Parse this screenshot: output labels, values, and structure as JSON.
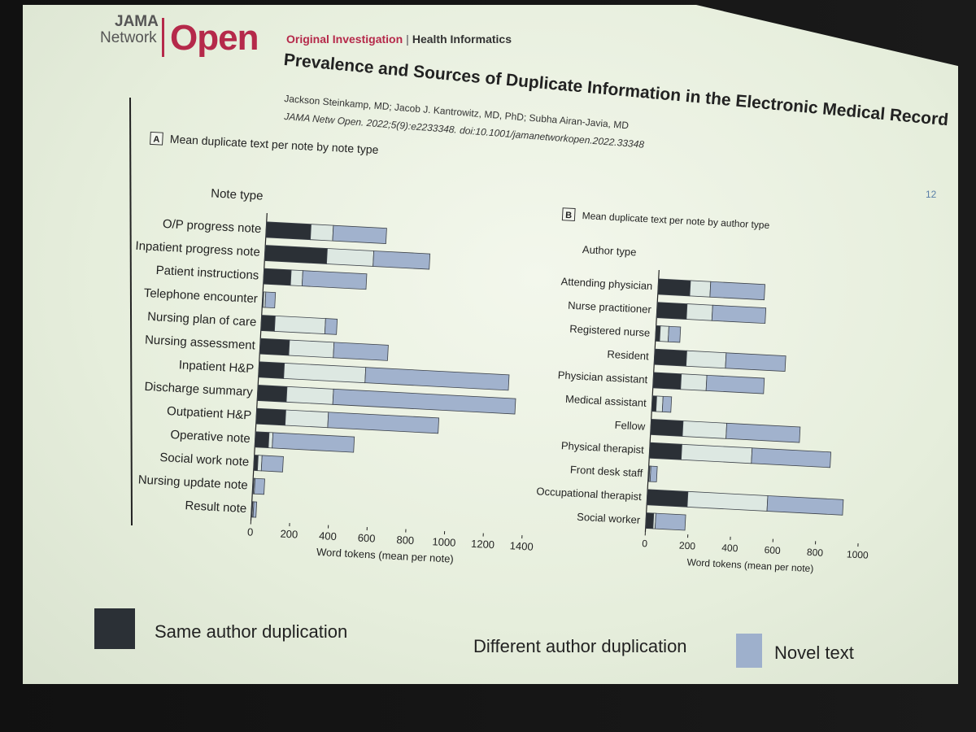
{
  "slide": {
    "logo": {
      "jama": "JAMA",
      "network": "Network",
      "open": "Open"
    },
    "section_a": "Original Investigation",
    "section_b": "Health Informatics",
    "title": "Prevalence and Sources of Duplicate Information in the Electronic Medical Record",
    "authors": "Jackson Steinkamp, MD; Jacob J. Kantrowitz, MD, PhD; Subha Airan-Javia, MD",
    "citation": "JAMA Netw Open. 2022;5(9):e2233348. doi:10.1001/jamanetworkopen.2022.33348",
    "page_number": "12"
  },
  "legend": [
    {
      "label": "Same author duplication",
      "color": "#2b3036"
    },
    {
      "label": "Different author duplication",
      "color": "#d9e6e0"
    },
    {
      "label": "Novel text",
      "color": "#9eb0cc"
    }
  ],
  "colors": {
    "same": "#2b3036",
    "different": "#dde8e2",
    "novel": "#a1b2cd",
    "stroke": "#3b4048"
  },
  "chart_data": [
    {
      "type": "bar",
      "orientation": "horizontal",
      "stacked": true,
      "panel": "A",
      "title": "Mean duplicate text per note by note type",
      "category_label": "Note type",
      "xlabel": "Word tokens (mean per note)",
      "xlim": [
        0,
        1400
      ],
      "xticks": [
        0,
        200,
        400,
        600,
        800,
        1000,
        1200,
        1400
      ],
      "categories": [
        "O/P progress note",
        "Inpatient progress note",
        "Patient instructions",
        "Telephone encounter",
        "Nursing plan of care",
        "Nursing assessment",
        "Inpatient H&P",
        "Discharge summary",
        "Outpatient H&P",
        "Operative note",
        "Social work note",
        "Nursing update note",
        "Result note"
      ],
      "series": [
        {
          "name": "Same author duplication",
          "values": [
            230,
            320,
            140,
            5,
            70,
            150,
            130,
            150,
            150,
            70,
            20,
            5,
            5
          ]
        },
        {
          "name": "Different author duplication",
          "values": [
            115,
            240,
            60,
            10,
            260,
            230,
            420,
            240,
            220,
            20,
            20,
            5,
            5
          ]
        },
        {
          "name": "Novel text",
          "values": [
            275,
            290,
            330,
            50,
            60,
            280,
            740,
            940,
            570,
            420,
            110,
            50,
            15
          ]
        }
      ]
    },
    {
      "type": "bar",
      "orientation": "horizontal",
      "stacked": true,
      "panel": "B",
      "title": "Mean duplicate text per note by author type",
      "category_label": "Author type",
      "xlabel": "Word tokens (mean per note)",
      "xlim": [
        0,
        1000
      ],
      "xticks": [
        0,
        200,
        400,
        600,
        800,
        1000
      ],
      "categories": [
        "Attending physician",
        "Nurse practitioner",
        "Registered nurse",
        "Resident",
        "Physician assistant",
        "Medical assistant",
        "Fellow",
        "Physical therapist",
        "Front desk staff",
        "Occupational therapist",
        "Social worker"
      ],
      "series": [
        {
          "name": "Same author duplication",
          "values": [
            150,
            140,
            20,
            150,
            130,
            20,
            150,
            150,
            5,
            190,
            35
          ]
        },
        {
          "name": "Different author duplication",
          "values": [
            95,
            120,
            40,
            185,
            120,
            30,
            205,
            330,
            5,
            375,
            10
          ]
        },
        {
          "name": "Novel text",
          "values": [
            255,
            250,
            55,
            280,
            270,
            40,
            345,
            370,
            30,
            355,
            140
          ]
        }
      ]
    }
  ]
}
